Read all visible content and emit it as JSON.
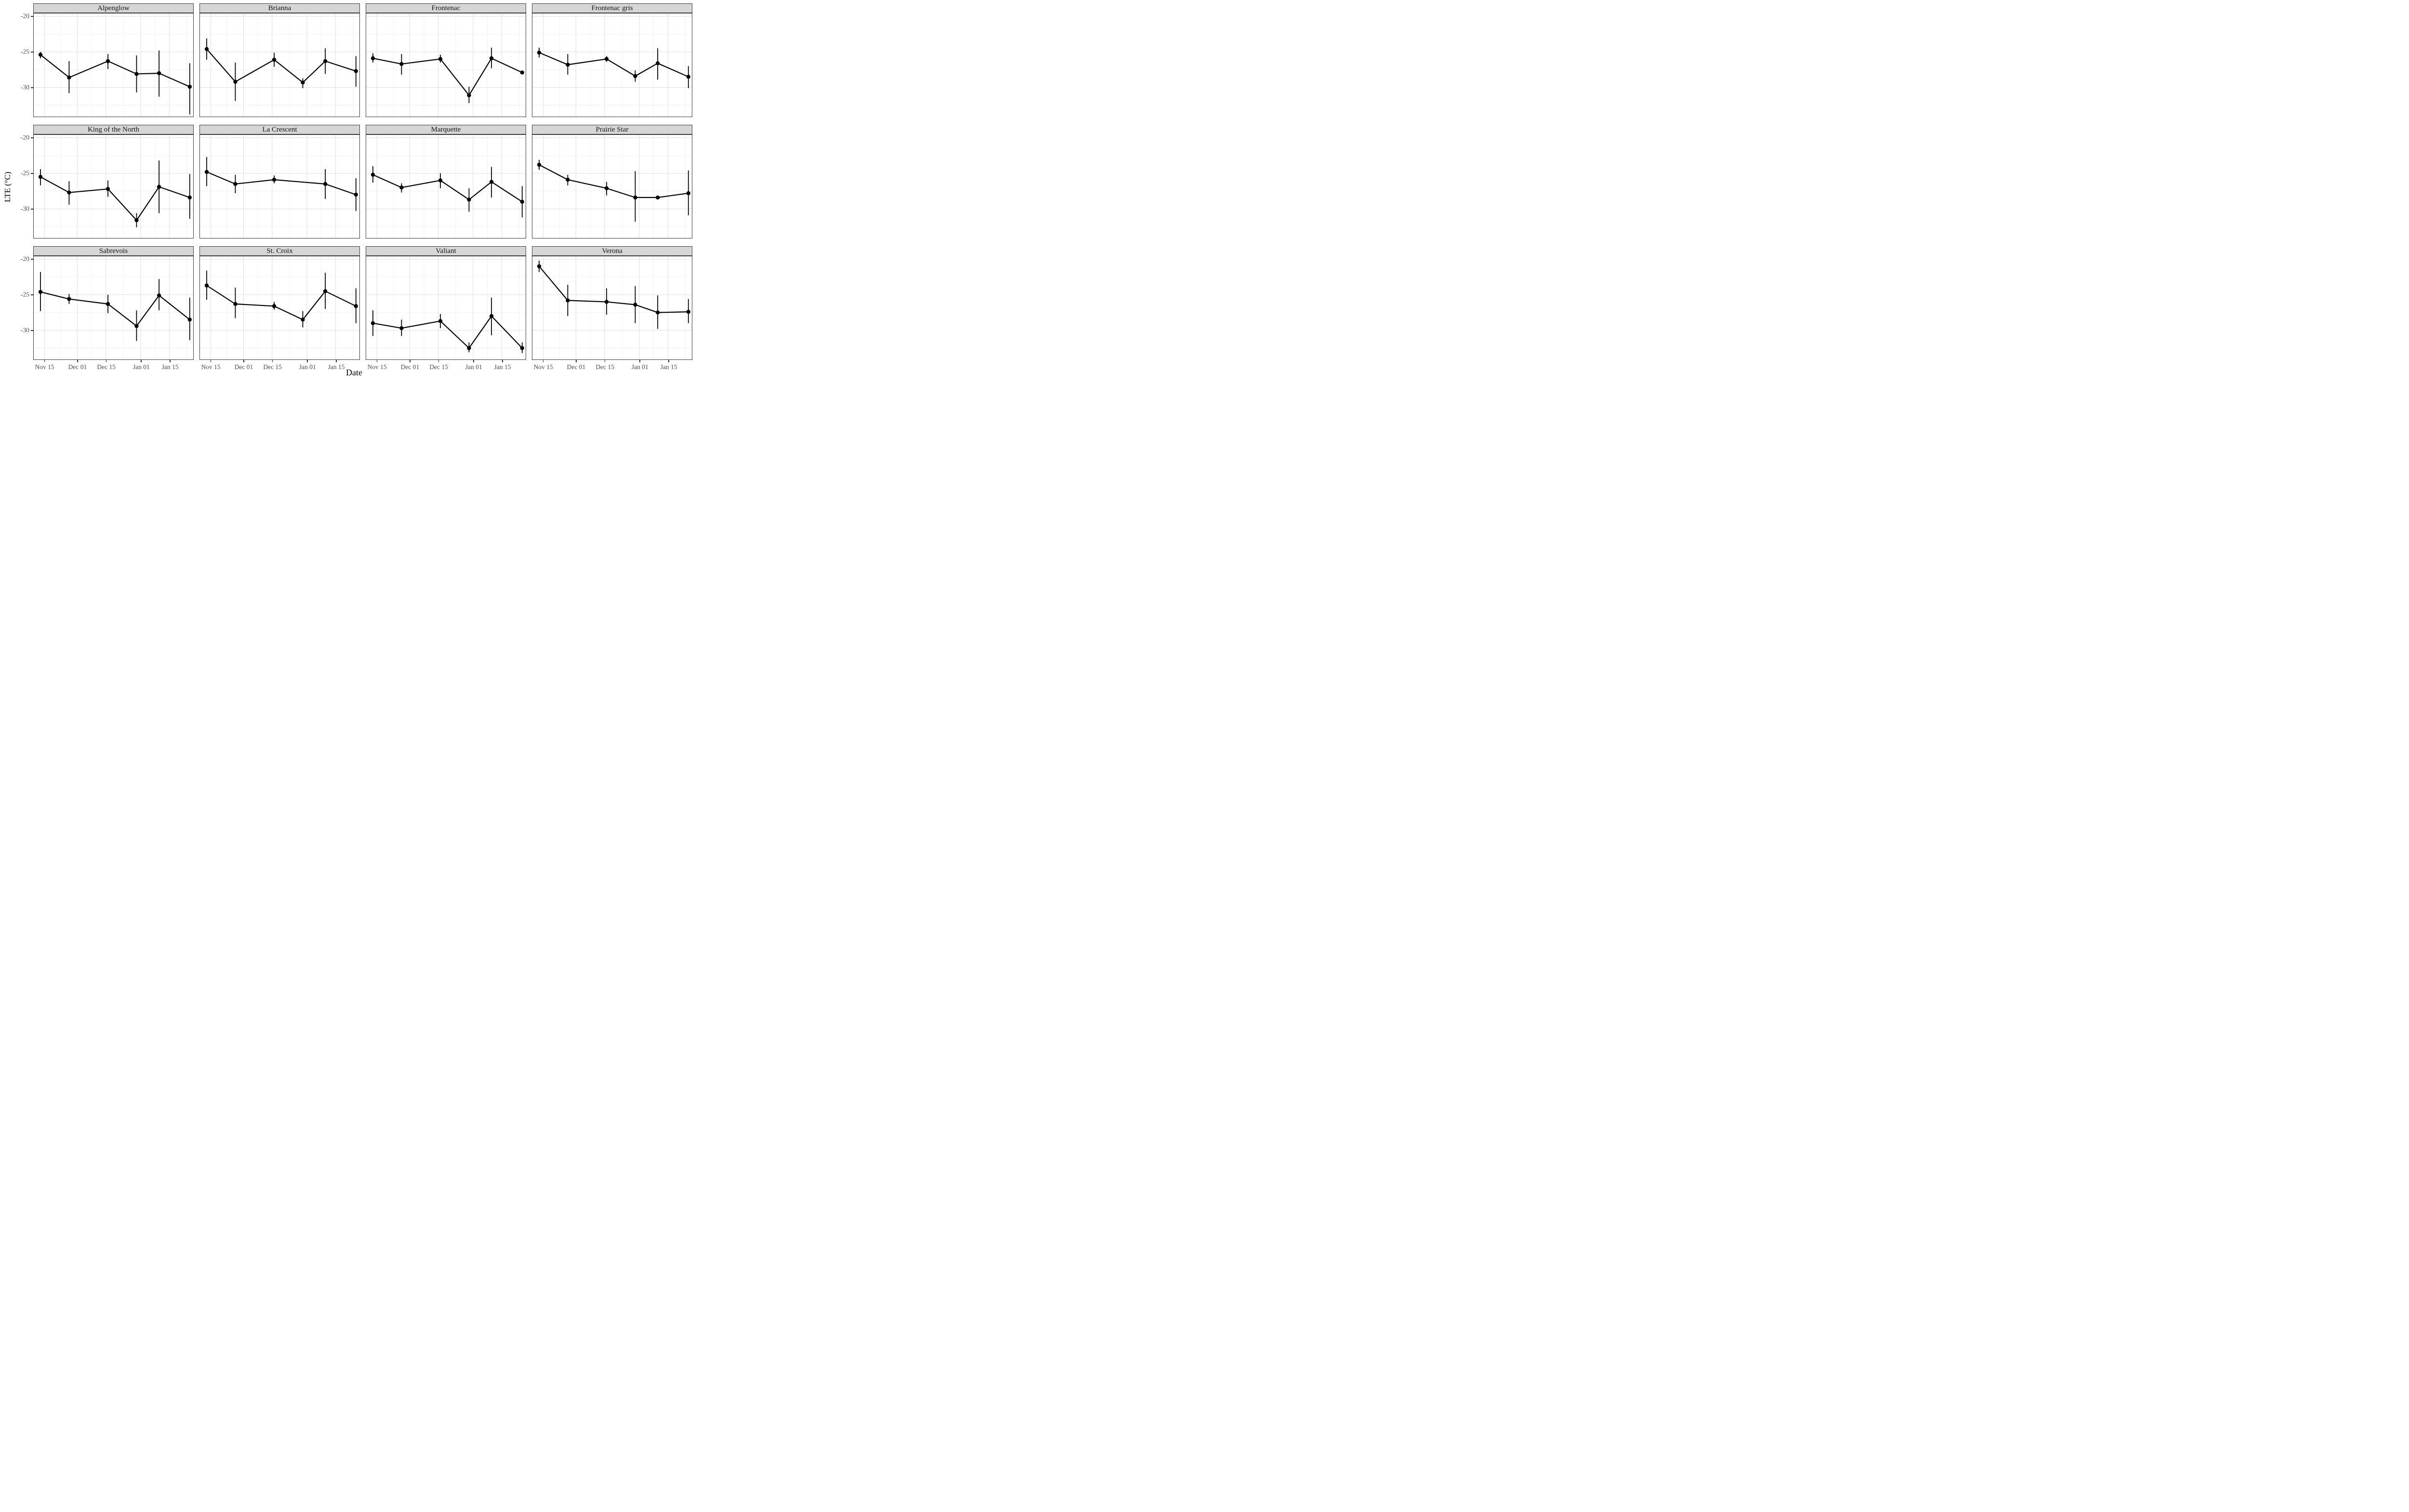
{
  "colors": {
    "strip_bg": "#d6d6d6",
    "panel_border": "#3b3b3b",
    "grid_major": "#e3e3e3",
    "grid_minor": "#f1f1f1",
    "data_color": "#000000",
    "tick_text": "#4d4d4d",
    "axis_title_text": "#000000",
    "strip_text": "#141414"
  },
  "chart_data": {
    "type": "line",
    "description": "Faceted dot-and-line chart of mean low temperature exotherm (LTE) with vertical error bars, by grape cultivar and sampling date",
    "legend_position": "none",
    "grid": "on",
    "x": {
      "label": "Date",
      "domain_days": [
        -5.3,
        72.7
      ],
      "ticks": [
        {
          "label": "Nov 15",
          "day": 0
        },
        {
          "label": "Dec 01",
          "day": 16
        },
        {
          "label": "Dec 15",
          "day": 30
        },
        {
          "label": "Jan 01",
          "day": 47
        },
        {
          "label": "Jan 15",
          "day": 61
        }
      ],
      "minor_days": [
        8,
        23,
        38.5,
        54,
        69.5
      ]
    },
    "y": {
      "label": "LTE (°C)",
      "domain": [
        -19.6,
        -34.1
      ],
      "ticks": [
        -20,
        -25,
        -30
      ],
      "minor": [
        -22.5,
        -27.5,
        -32.5
      ]
    },
    "facets": [
      {
        "label": "Alpenglow",
        "points": [
          {
            "date": "Nov 13",
            "day": -2,
            "mean": -25.4,
            "upper": -25.0,
            "lower": -25.9
          },
          {
            "date": "Nov 27",
            "day": 12,
            "mean": -28.6,
            "upper": -26.3,
            "lower": -30.8
          },
          {
            "date": "Dec 16",
            "day": 31,
            "mean": -26.3,
            "upper": -25.3,
            "lower": -27.4
          },
          {
            "date": "Dec 30",
            "day": 45,
            "mean": -28.1,
            "upper": -25.5,
            "lower": -30.7
          },
          {
            "date": "Jan 10",
            "day": 56,
            "mean": -28.0,
            "upper": -24.8,
            "lower": -31.3
          },
          {
            "date": "Jan 25",
            "day": 71,
            "mean": -29.9,
            "upper": -26.6,
            "lower": -33.8
          }
        ]
      },
      {
        "label": "Brianna",
        "points": [
          {
            "date": "Nov 13",
            "day": -2,
            "mean": -24.6,
            "upper": -23.1,
            "lower": -26.1
          },
          {
            "date": "Nov 27",
            "day": 12,
            "mean": -29.2,
            "upper": -26.5,
            "lower": -31.9
          },
          {
            "date": "Dec 16",
            "day": 31,
            "mean": -26.1,
            "upper": -25.1,
            "lower": -27.1
          },
          {
            "date": "Dec 30",
            "day": 45,
            "mean": -29.3,
            "upper": -28.7,
            "lower": -30.1
          },
          {
            "date": "Jan 10",
            "day": 56,
            "mean": -26.3,
            "upper": -24.5,
            "lower": -28.1
          },
          {
            "date": "Jan 25",
            "day": 71,
            "mean": -27.7,
            "upper": -25.6,
            "lower": -29.9
          }
        ]
      },
      {
        "label": "Frontenac",
        "points": [
          {
            "date": "Nov 13",
            "day": -2,
            "mean": -25.9,
            "upper": -25.2,
            "lower": -26.5
          },
          {
            "date": "Nov 27",
            "day": 12,
            "mean": -26.7,
            "upper": -25.3,
            "lower": -28.2
          },
          {
            "date": "Dec 16",
            "day": 31,
            "mean": -26.0,
            "upper": -25.4,
            "lower": -26.5
          },
          {
            "date": "Dec 30",
            "day": 45,
            "mean": -31.1,
            "upper": -29.9,
            "lower": -32.2
          },
          {
            "date": "Jan 10",
            "day": 56,
            "mean": -25.9,
            "upper": -24.4,
            "lower": -27.3
          },
          {
            "date": "Jan 25",
            "day": 71,
            "mean": -27.9,
            "upper": -27.9,
            "lower": -27.9
          }
        ]
      },
      {
        "label": "Frontenac gris",
        "points": [
          {
            "date": "Nov 13",
            "day": -2,
            "mean": -25.1,
            "upper": -24.4,
            "lower": -25.8
          },
          {
            "date": "Nov 27",
            "day": 12,
            "mean": -26.8,
            "upper": -25.3,
            "lower": -28.2
          },
          {
            "date": "Dec 16",
            "day": 31,
            "mean": -26.0,
            "upper": -25.6,
            "lower": -26.4
          },
          {
            "date": "Dec 30",
            "day": 45,
            "mean": -28.4,
            "upper": -27.6,
            "lower": -29.2
          },
          {
            "date": "Jan 10",
            "day": 56,
            "mean": -26.6,
            "upper": -24.5,
            "lower": -28.9
          },
          {
            "date": "Jan 25",
            "day": 71,
            "mean": -28.5,
            "upper": -27.0,
            "lower": -30.1
          }
        ]
      },
      {
        "label": "King of the North",
        "points": [
          {
            "date": "Nov 13",
            "day": -2,
            "mean": -25.5,
            "upper": -24.4,
            "lower": -26.7
          },
          {
            "date": "Nov 27",
            "day": 12,
            "mean": -27.7,
            "upper": -26.1,
            "lower": -29.4
          },
          {
            "date": "Dec 16",
            "day": 31,
            "mean": -27.2,
            "upper": -26.0,
            "lower": -28.3
          },
          {
            "date": "Dec 30",
            "day": 45,
            "mean": -31.6,
            "upper": -30.6,
            "lower": -32.6
          },
          {
            "date": "Jan 10",
            "day": 56,
            "mean": -26.9,
            "upper": -23.2,
            "lower": -30.6
          },
          {
            "date": "Jan 25",
            "day": 71,
            "mean": -28.4,
            "upper": -25.1,
            "lower": -31.4
          }
        ]
      },
      {
        "label": "La Crescent",
        "points": [
          {
            "date": "Nov 13",
            "day": -2,
            "mean": -24.8,
            "upper": -22.7,
            "lower": -26.8
          },
          {
            "date": "Nov 27",
            "day": 12,
            "mean": -26.5,
            "upper": -25.2,
            "lower": -27.8
          },
          {
            "date": "Dec 16",
            "day": 31,
            "mean": -25.9,
            "upper": -25.3,
            "lower": -26.4
          },
          {
            "date": "Jan 10",
            "day": 56,
            "mean": -26.5,
            "upper": -24.4,
            "lower": -28.6
          },
          {
            "date": "Jan 25",
            "day": 71,
            "mean": -28.0,
            "upper": -25.7,
            "lower": -30.3
          }
        ]
      },
      {
        "label": "Marquette",
        "points": [
          {
            "date": "Nov 13",
            "day": -2,
            "mean": -25.2,
            "upper": -24.0,
            "lower": -26.3
          },
          {
            "date": "Nov 27",
            "day": 12,
            "mean": -27.0,
            "upper": -26.4,
            "lower": -27.7
          },
          {
            "date": "Dec 16",
            "day": 31,
            "mean": -26.0,
            "upper": -25.0,
            "lower": -27.1
          },
          {
            "date": "Dec 30",
            "day": 45,
            "mean": -28.7,
            "upper": -27.1,
            "lower": -30.4
          },
          {
            "date": "Jan 10",
            "day": 56,
            "mean": -26.2,
            "upper": -24.1,
            "lower": -28.4
          },
          {
            "date": "Jan 25",
            "day": 71,
            "mean": -29.0,
            "upper": -26.8,
            "lower": -31.2
          }
        ]
      },
      {
        "label": "Prairie Star",
        "points": [
          {
            "date": "Nov 13",
            "day": -2,
            "mean": -23.8,
            "upper": -23.1,
            "lower": -24.5
          },
          {
            "date": "Nov 27",
            "day": 12,
            "mean": -25.9,
            "upper": -25.2,
            "lower": -26.7
          },
          {
            "date": "Dec 16",
            "day": 31,
            "mean": -27.1,
            "upper": -26.2,
            "lower": -28.1
          },
          {
            "date": "Dec 30",
            "day": 45,
            "mean": -28.4,
            "upper": -24.7,
            "lower": -31.8
          },
          {
            "date": "Jan 10",
            "day": 56,
            "mean": -28.4,
            "upper": -28.4,
            "lower": -28.4
          },
          {
            "date": "Jan 25",
            "day": 71,
            "mean": -27.8,
            "upper": -24.6,
            "lower": -30.9
          }
        ]
      },
      {
        "label": "Sabrevois",
        "points": [
          {
            "date": "Nov 13",
            "day": -2,
            "mean": -24.6,
            "upper": -21.8,
            "lower": -27.3
          },
          {
            "date": "Nov 27",
            "day": 12,
            "mean": -25.6,
            "upper": -24.9,
            "lower": -26.3
          },
          {
            "date": "Dec 16",
            "day": 31,
            "mean": -26.3,
            "upper": -25.0,
            "lower": -27.6
          },
          {
            "date": "Dec 30",
            "day": 45,
            "mean": -29.4,
            "upper": -27.2,
            "lower": -31.5
          },
          {
            "date": "Jan 10",
            "day": 56,
            "mean": -25.1,
            "upper": -22.8,
            "lower": -27.2
          },
          {
            "date": "Jan 25",
            "day": 71,
            "mean": -28.5,
            "upper": -25.4,
            "lower": -31.4
          }
        ]
      },
      {
        "label": "St. Croix",
        "points": [
          {
            "date": "Nov 13",
            "day": -2,
            "mean": -23.7,
            "upper": -21.6,
            "lower": -25.7
          },
          {
            "date": "Nov 27",
            "day": 12,
            "mean": -26.3,
            "upper": -24.0,
            "lower": -28.3
          },
          {
            "date": "Dec 16",
            "day": 31,
            "mean": -26.6,
            "upper": -26.0,
            "lower": -27.1
          },
          {
            "date": "Dec 30",
            "day": 45,
            "mean": -28.5,
            "upper": -27.3,
            "lower": -29.6
          },
          {
            "date": "Jan 10",
            "day": 56,
            "mean": -24.5,
            "upper": -21.9,
            "lower": -27.0
          },
          {
            "date": "Jan 25",
            "day": 71,
            "mean": -26.6,
            "upper": -24.1,
            "lower": -29.0
          }
        ]
      },
      {
        "label": "Valiant",
        "points": [
          {
            "date": "Nov 13",
            "day": -2,
            "mean": -29.0,
            "upper": -27.2,
            "lower": -30.8
          },
          {
            "date": "Nov 27",
            "day": 12,
            "mean": -29.7,
            "upper": -28.5,
            "lower": -30.8
          },
          {
            "date": "Dec 16",
            "day": 31,
            "mean": -28.7,
            "upper": -27.7,
            "lower": -29.7
          },
          {
            "date": "Dec 30",
            "day": 45,
            "mean": -32.5,
            "upper": -31.7,
            "lower": -33.1
          },
          {
            "date": "Jan 10",
            "day": 56,
            "mean": -28.0,
            "upper": -25.4,
            "lower": -30.7
          },
          {
            "date": "Jan 25",
            "day": 71,
            "mean": -32.5,
            "upper": -31.7,
            "lower": -33.2
          }
        ]
      },
      {
        "label": "Verona",
        "points": [
          {
            "date": "Nov 13",
            "day": -2,
            "mean": -21.0,
            "upper": -20.2,
            "lower": -21.8
          },
          {
            "date": "Nov 27",
            "day": 12,
            "mean": -25.8,
            "upper": -23.6,
            "lower": -28.0
          },
          {
            "date": "Dec 16",
            "day": 31,
            "mean": -26.0,
            "upper": -24.1,
            "lower": -27.8
          },
          {
            "date": "Dec 30",
            "day": 45,
            "mean": -26.4,
            "upper": -23.8,
            "lower": -29.0
          },
          {
            "date": "Jan 10",
            "day": 56,
            "mean": -27.5,
            "upper": -25.1,
            "lower": -29.8
          },
          {
            "date": "Jan 25",
            "day": 71,
            "mean": -27.4,
            "upper": -25.6,
            "lower": -29.0
          }
        ]
      }
    ]
  }
}
